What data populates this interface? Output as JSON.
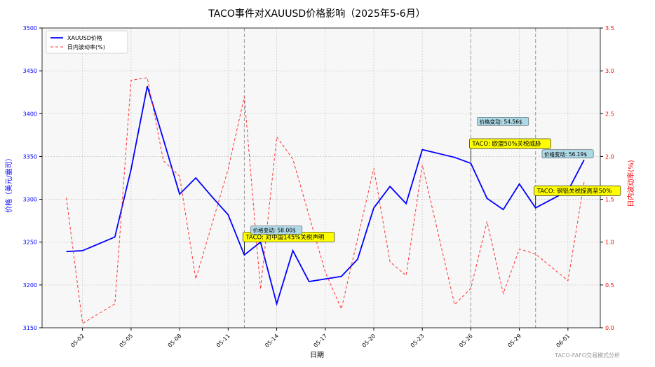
{
  "chart_data": {
    "type": "line",
    "title": "TACO事件对XAUUSD价格影响（2025年5-6月）",
    "xlabel": "日期",
    "ylabel_left": "价格（美元/盎司）",
    "ylabel_right": "日内波动率(%)",
    "watermark": "TACO-FAFO交易模式分析",
    "grid": true,
    "legend_position": "top-left",
    "y_left_lim": [
      3150,
      3500
    ],
    "y_right_lim": [
      0.0,
      3.5
    ],
    "x_range_day": [
      29.5,
      64
    ],
    "y_left_ticks": [
      3150,
      3200,
      3250,
      3300,
      3350,
      3400,
      3450,
      3500
    ],
    "y_right_ticks": [
      "0.0",
      "0.5",
      "1.0",
      "1.5",
      "2.0",
      "2.5",
      "3.0",
      "3.5"
    ],
    "x_ticks": [
      {
        "label": "05-02",
        "day": 32
      },
      {
        "label": "05-05",
        "day": 35
      },
      {
        "label": "05-08",
        "day": 38
      },
      {
        "label": "05-11",
        "day": 41
      },
      {
        "label": "05-14",
        "day": 44
      },
      {
        "label": "05-17",
        "day": 47
      },
      {
        "label": "05-20",
        "day": 50
      },
      {
        "label": "05-23",
        "day": 53
      },
      {
        "label": "05-26",
        "day": 56
      },
      {
        "label": "05-29",
        "day": 59
      },
      {
        "label": "06-01",
        "day": 62
      }
    ],
    "series": [
      {
        "name": "XAUUSD价格",
        "axis": "left",
        "color": "#0000ff",
        "style": "solid",
        "points": [
          {
            "day": 31,
            "value": 3239
          },
          {
            "day": 32,
            "value": 3240
          },
          {
            "day": 34,
            "value": 3256
          },
          {
            "day": 35,
            "value": 3335
          },
          {
            "day": 36,
            "value": 3432
          },
          {
            "day": 37,
            "value": 3370
          },
          {
            "day": 38,
            "value": 3306
          },
          {
            "day": 39,
            "value": 3325
          },
          {
            "day": 40,
            "value": 3303
          },
          {
            "day": 41,
            "value": 3282
          },
          {
            "day": 42,
            "value": 3235
          },
          {
            "day": 43,
            "value": 3250
          },
          {
            "day": 44,
            "value": 3178
          },
          {
            "day": 45,
            "value": 3240
          },
          {
            "day": 46,
            "value": 3204
          },
          {
            "day": 48,
            "value": 3210
          },
          {
            "day": 49,
            "value": 3230
          },
          {
            "day": 50,
            "value": 3290
          },
          {
            "day": 51,
            "value": 3315
          },
          {
            "day": 52,
            "value": 3295
          },
          {
            "day": 53,
            "value": 3358
          },
          {
            "day": 55,
            "value": 3349
          },
          {
            "day": 56,
            "value": 3342
          },
          {
            "day": 57,
            "value": 3301
          },
          {
            "day": 58,
            "value": 3288
          },
          {
            "day": 59,
            "value": 3318
          },
          {
            "day": 60,
            "value": 3290
          },
          {
            "day": 62,
            "value": 3310
          },
          {
            "day": 63,
            "value": 3346
          }
        ]
      },
      {
        "name": "日内波动率(%)",
        "axis": "right",
        "color": "#ff3333",
        "style": "dashed",
        "points": [
          {
            "day": 31,
            "value": 1.52
          },
          {
            "day": 32,
            "value": 0.05
          },
          {
            "day": 34,
            "value": 0.28
          },
          {
            "day": 35,
            "value": 2.89
          },
          {
            "day": 36,
            "value": 2.92
          },
          {
            "day": 37,
            "value": 1.95
          },
          {
            "day": 38,
            "value": 1.77
          },
          {
            "day": 39,
            "value": 0.57
          },
          {
            "day": 41,
            "value": 1.85
          },
          {
            "day": 42,
            "value": 2.7
          },
          {
            "day": 43,
            "value": 0.45
          },
          {
            "day": 44,
            "value": 2.23
          },
          {
            "day": 45,
            "value": 1.97
          },
          {
            "day": 47,
            "value": 0.65
          },
          {
            "day": 48,
            "value": 0.22
          },
          {
            "day": 50,
            "value": 1.86
          },
          {
            "day": 51,
            "value": 0.77
          },
          {
            "day": 52,
            "value": 0.61
          },
          {
            "day": 53,
            "value": 1.9
          },
          {
            "day": 55,
            "value": 0.27
          },
          {
            "day": 56,
            "value": 0.46
          },
          {
            "day": 57,
            "value": 1.24
          },
          {
            "day": 58,
            "value": 0.4
          },
          {
            "day": 59,
            "value": 0.92
          },
          {
            "day": 60,
            "value": 0.86
          },
          {
            "day": 62,
            "value": 0.55
          },
          {
            "day": 63,
            "value": 1.7
          }
        ]
      }
    ],
    "event_lines": [
      42,
      56,
      60
    ],
    "annotations": [
      {
        "text": "TACO: 对中国145%关税声明",
        "kind": "event",
        "day": 42,
        "value": 3235,
        "label_day": 42,
        "label_value": 3256
      },
      {
        "text": "TACO: 欧盟50%关税威胁",
        "kind": "event",
        "day": 56,
        "value": 3342,
        "label_day": 56,
        "label_value": 3365
      },
      {
        "text": "TACO: 钢铝关税提高至50%",
        "kind": "event",
        "day": 60,
        "value": 3290,
        "label_day": 60,
        "label_value": 3310
      },
      {
        "text": "价格变动: 58.00$",
        "kind": "change",
        "day": 42.4,
        "value": 3264
      },
      {
        "text": "价格变动: 54.56$",
        "kind": "change",
        "day": 56.4,
        "value": 3391
      },
      {
        "text": "价格变动: 56.19$",
        "kind": "change",
        "day": 60.4,
        "value": 3353
      }
    ],
    "colors": {
      "price": "#0000ff",
      "volatility": "#ff3333",
      "event_box": "#ffff00",
      "change_box": "#add8e6",
      "grid": "#cccccc",
      "event_line": "#999999"
    }
  }
}
